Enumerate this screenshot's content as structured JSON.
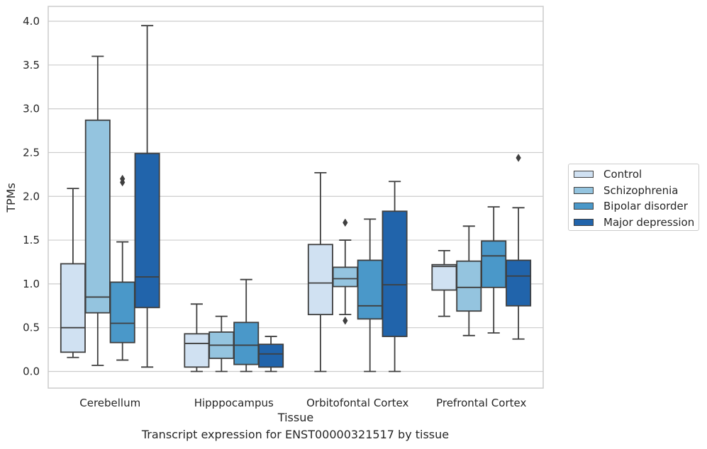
{
  "caption": "Transcript expression for ENST00000321517 by tissue",
  "chart_data": {
    "type": "box",
    "xlabel": "Tissue",
    "ylabel": "TPMs",
    "ylim": [
      -0.19,
      4.17
    ],
    "yticks": [
      "0.0",
      "0.5",
      "1.0",
      "1.5",
      "2.0",
      "2.5",
      "3.0",
      "3.5",
      "4.0"
    ],
    "grid": "horizontal",
    "legend_position": "right",
    "categories": [
      "Cerebellum",
      "Hipppocampus",
      "Orbitofontal Cortex",
      "Prefrontal Cortex"
    ],
    "series": [
      {
        "name": "Control",
        "color": "#d0e1f2",
        "boxes": [
          {
            "whislo": 0.16,
            "q1": 0.22,
            "med": 0.5,
            "q3": 1.23,
            "whishi": 2.09,
            "fliers": []
          },
          {
            "whislo": 0.0,
            "q1": 0.05,
            "med": 0.32,
            "q3": 0.43,
            "whishi": 0.77,
            "fliers": []
          },
          {
            "whislo": 0.0,
            "q1": 0.65,
            "med": 1.01,
            "q3": 1.45,
            "whishi": 2.27,
            "fliers": []
          },
          {
            "whislo": 0.63,
            "q1": 0.93,
            "med": 1.2,
            "q3": 1.22,
            "whishi": 1.38,
            "fliers": []
          }
        ]
      },
      {
        "name": "Schizophrenia",
        "color": "#94c4df",
        "boxes": [
          {
            "whislo": 0.07,
            "q1": 0.67,
            "med": 0.85,
            "q3": 2.87,
            "whishi": 3.6,
            "fliers": []
          },
          {
            "whislo": 0.0,
            "q1": 0.15,
            "med": 0.3,
            "q3": 0.45,
            "whishi": 0.63,
            "fliers": []
          },
          {
            "whislo": 0.65,
            "q1": 0.97,
            "med": 1.06,
            "q3": 1.19,
            "whishi": 1.5,
            "fliers": [
              1.7,
              0.58
            ]
          },
          {
            "whislo": 0.41,
            "q1": 0.69,
            "med": 0.96,
            "q3": 1.26,
            "whishi": 1.66,
            "fliers": []
          }
        ]
      },
      {
        "name": "Bipolar disorder",
        "color": "#4a98c9",
        "boxes": [
          {
            "whislo": 0.13,
            "q1": 0.33,
            "med": 0.55,
            "q3": 1.02,
            "whishi": 1.48,
            "fliers": [
              2.2,
              2.16
            ]
          },
          {
            "whislo": 0.0,
            "q1": 0.08,
            "med": 0.3,
            "q3": 0.56,
            "whishi": 1.05,
            "fliers": []
          },
          {
            "whislo": 0.0,
            "q1": 0.6,
            "med": 0.75,
            "q3": 1.27,
            "whishi": 1.74,
            "fliers": []
          },
          {
            "whislo": 0.44,
            "q1": 0.96,
            "med": 1.32,
            "q3": 1.49,
            "whishi": 1.88,
            "fliers": []
          }
        ]
      },
      {
        "name": "Major depression",
        "color": "#2164ab",
        "boxes": [
          {
            "whislo": 0.05,
            "q1": 0.73,
            "med": 1.08,
            "q3": 2.49,
            "whishi": 3.95,
            "fliers": []
          },
          {
            "whislo": 0.0,
            "q1": 0.05,
            "med": 0.2,
            "q3": 0.31,
            "whishi": 0.4,
            "fliers": []
          },
          {
            "whislo": 0.0,
            "q1": 0.4,
            "med": 0.99,
            "q3": 1.83,
            "whishi": 2.17,
            "fliers": []
          },
          {
            "whislo": 0.37,
            "q1": 0.75,
            "med": 1.09,
            "q3": 1.27,
            "whishi": 1.87,
            "fliers": [
              2.44
            ]
          }
        ]
      }
    ]
  }
}
